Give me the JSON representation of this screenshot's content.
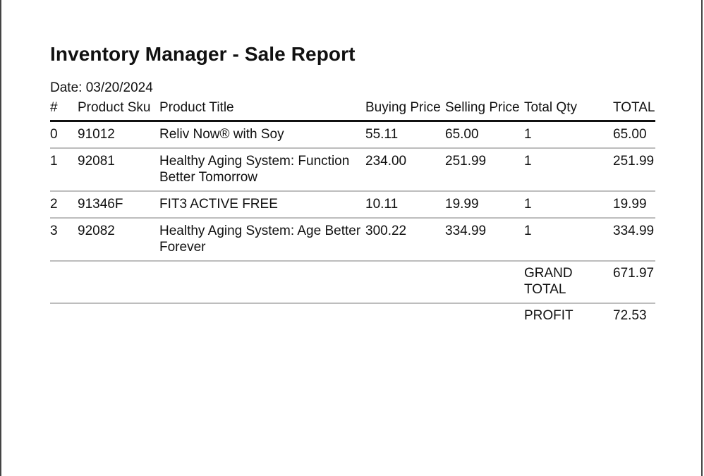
{
  "report": {
    "title": "Inventory Manager - Sale Report",
    "date_label": "Date:",
    "date_value": "03/20/2024"
  },
  "table": {
    "headers": {
      "num": "#",
      "sku": "Product Sku",
      "title": "Product Title",
      "buying_price": "Buying Price",
      "selling_price": "Selling Price",
      "total_qty": "Total Qty",
      "total": "TOTAL"
    },
    "rows": [
      {
        "num": "0",
        "sku": "91012",
        "title": "Reliv Now® with Soy",
        "buying_price": "55.11",
        "selling_price": "65.00",
        "qty": "1",
        "total": "65.00"
      },
      {
        "num": "1",
        "sku": "92081",
        "title": "Healthy Aging System: Function Better Tomorrow",
        "buying_price": "234.00",
        "selling_price": "251.99",
        "qty": "1",
        "total": "251.99"
      },
      {
        "num": "2",
        "sku": "91346F",
        "title": "FIT3 ACTIVE FREE",
        "buying_price": "10.11",
        "selling_price": "19.99",
        "qty": "1",
        "total": "19.99"
      },
      {
        "num": "3",
        "sku": "92082",
        "title": "Healthy Aging System: Age Better Forever",
        "buying_price": "300.22",
        "selling_price": "334.99",
        "qty": "1",
        "total": "334.99"
      }
    ],
    "summary": {
      "grand_total_label": "GRAND TOTAL",
      "grand_total_value": "671.97",
      "profit_label": "PROFIT",
      "profit_value": "72.53"
    }
  }
}
